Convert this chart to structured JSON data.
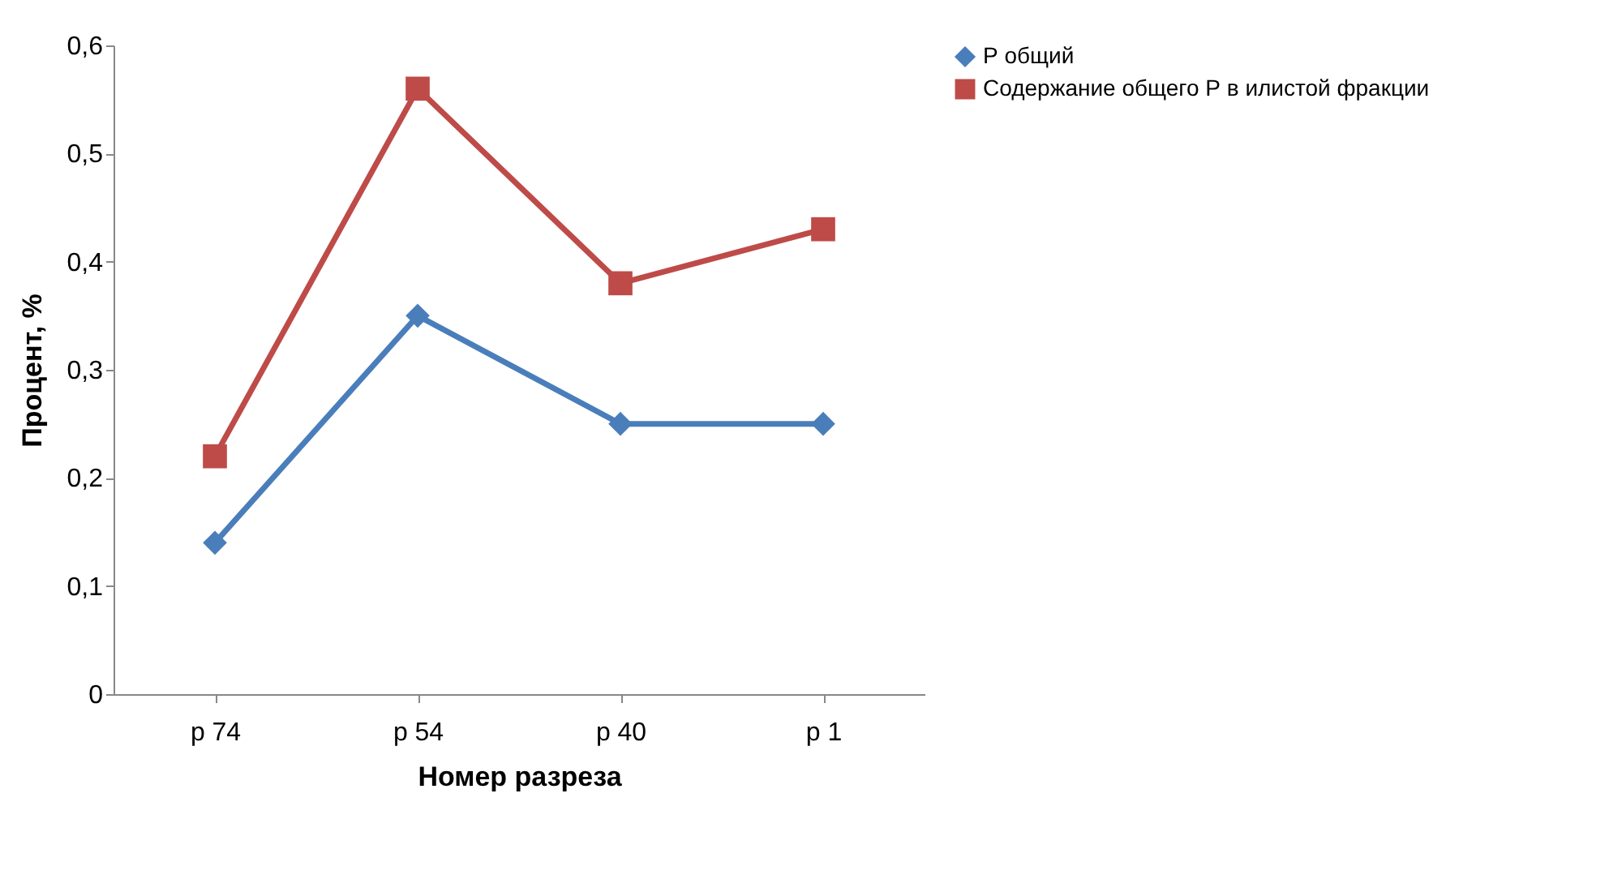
{
  "chart_data": {
    "type": "line",
    "xlabel": "Номер разреза",
    "ylabel": "Процент, %",
    "categories": [
      "р 74",
      "р 54",
      "р 40",
      "р 1"
    ],
    "series": [
      {
        "name": "Р общий",
        "color": "#4a7ebb",
        "marker": "diamond",
        "values": [
          0.14,
          0.35,
          0.25,
          0.25
        ]
      },
      {
        "name": "Содержание общего Р в илистой фракции",
        "color": "#be4b48",
        "marker": "square",
        "values": [
          0.22,
          0.56,
          0.38,
          0.43
        ]
      }
    ],
    "ylim": [
      0,
      0.6
    ],
    "yticks": [
      {
        "value": 0,
        "label": "0"
      },
      {
        "value": 0.1,
        "label": "0,1"
      },
      {
        "value": 0.2,
        "label": "0,2"
      },
      {
        "value": 0.3,
        "label": "0,3"
      },
      {
        "value": 0.4,
        "label": "0,4"
      },
      {
        "value": 0.5,
        "label": "0,5"
      },
      {
        "value": 0.6,
        "label": "0,6"
      }
    ],
    "grid": false,
    "legend": "right",
    "line_style": "solid"
  }
}
